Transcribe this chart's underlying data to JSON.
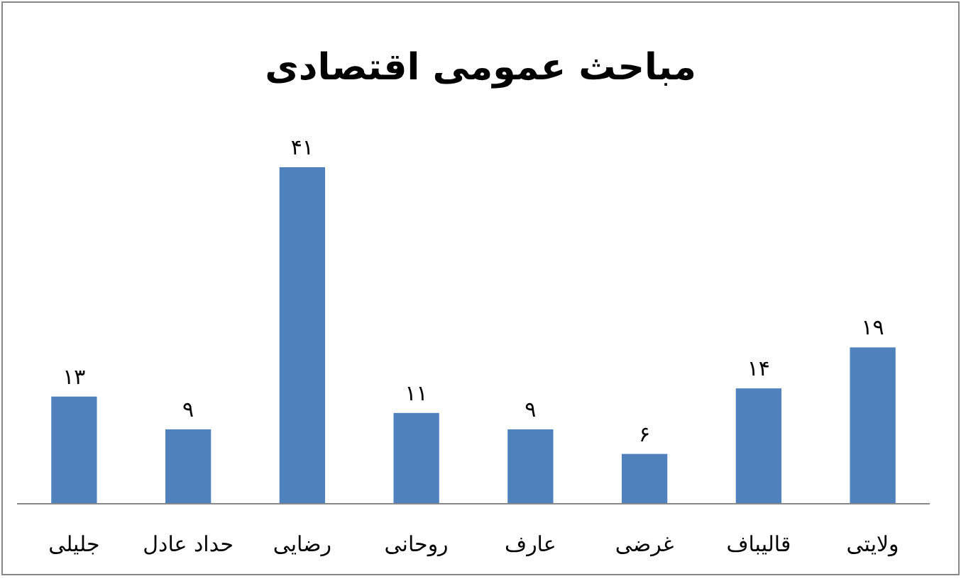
{
  "chart_data": {
    "type": "bar",
    "title": "مباحث عمومی اقتصادی",
    "categories": [
      "جلیلی",
      "حداد عادل",
      "رضایی",
      "روحانی",
      "عارف",
      "غرضی",
      "قالیباف",
      "ولایتی"
    ],
    "values": [
      13,
      9,
      41,
      11,
      9,
      6,
      14,
      19
    ],
    "value_labels": [
      "۱۳",
      "۹",
      "۴۱",
      "۱۱",
      "۹",
      "۶",
      "۱۴",
      "۱۹"
    ],
    "color": "#4f81bd",
    "grid": false
  }
}
